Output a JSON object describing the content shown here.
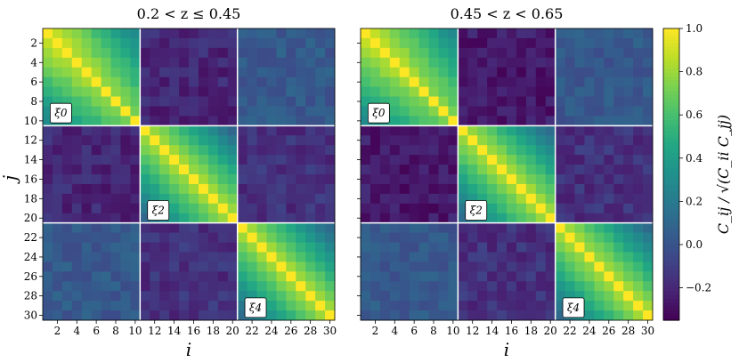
{
  "chart_data": {
    "type": "heatmap",
    "xlabel": "i",
    "ylabel": "j",
    "n": 30,
    "block_size": 10,
    "block_labels": [
      "ξ0",
      "ξ2",
      "ξ4"
    ],
    "tick_values": [
      2,
      4,
      6,
      8,
      10,
      12,
      14,
      16,
      18,
      20,
      22,
      24,
      26,
      28,
      30
    ],
    "panels": [
      {
        "title": "0.2 < z ≤ 0.45"
      },
      {
        "title": "0.45 < z < 0.65"
      }
    ],
    "colorbar": {
      "label": "C_ij / √(C_ii C_jj)",
      "vmin": -0.35,
      "vmax": 1.0,
      "ticks": [
        1.0,
        0.8,
        0.6,
        0.4,
        0.2,
        0.0,
        -0.2
      ],
      "tick_labels": [
        "1.0",
        "0.8",
        "0.6",
        "0.4",
        "0.2",
        "0.0",
        "−0.2"
      ]
    },
    "colormap": "viridis",
    "grid": false
  }
}
